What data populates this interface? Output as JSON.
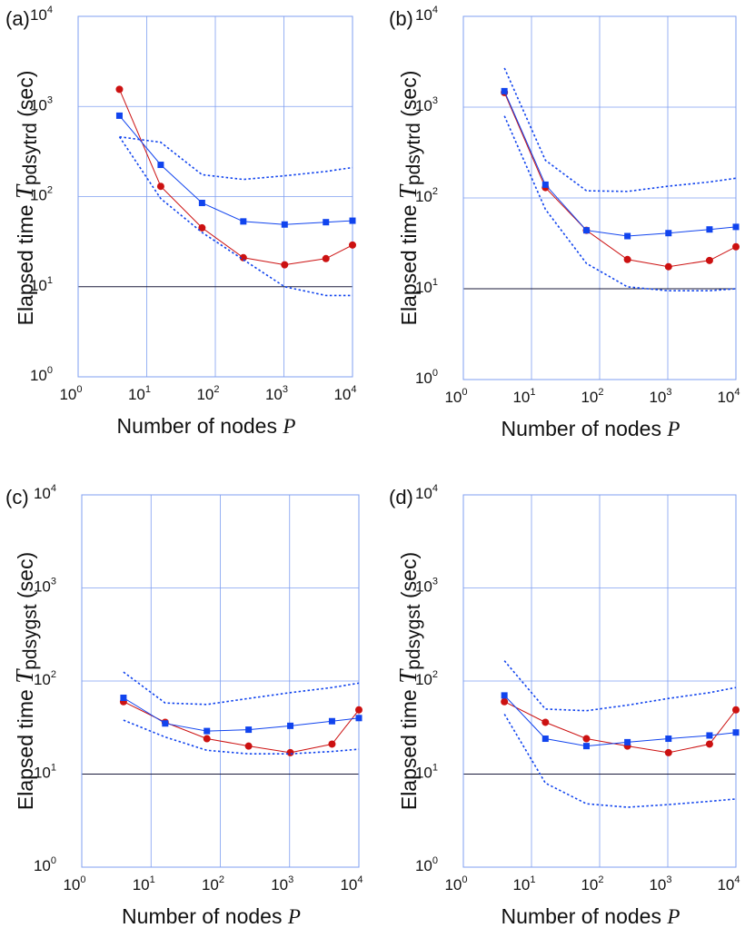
{
  "chart_data": [
    {
      "type": "line",
      "panel_label": "(a)",
      "xscale": "log",
      "yscale": "log",
      "xlim": [
        1,
        10000
      ],
      "ylim": [
        1,
        10000
      ],
      "grid": true,
      "x_ticks": [
        {
          "base": "10",
          "exp": "0"
        },
        {
          "base": "10",
          "exp": "1"
        },
        {
          "base": "10",
          "exp": "2"
        },
        {
          "base": "10",
          "exp": "3"
        },
        {
          "base": "10",
          "exp": "4"
        }
      ],
      "y_ticks": [
        {
          "base": "10",
          "exp": "0"
        },
        {
          "base": "10",
          "exp": "1"
        },
        {
          "base": "10",
          "exp": "2"
        },
        {
          "base": "10",
          "exp": "3"
        },
        {
          "base": "10",
          "exp": "4"
        }
      ],
      "xlabel": "Number of nodes",
      "xlabel_var": "P",
      "ylabel": "Elapsed time",
      "ylabel_var": "T",
      "ylabel_sub": "pdsytrd",
      "ylabel_unit": "(sec)",
      "series": [
        {
          "name": "red circles",
          "color": "#cc1111",
          "marker": "circle",
          "x": [
            4,
            16,
            64,
            256,
            1024,
            4096,
            10000
          ],
          "y": [
            1550,
            130,
            45,
            21,
            17.5,
            20.5,
            29
          ]
        },
        {
          "name": "blue squares",
          "color": "#1144ee",
          "marker": "square",
          "x": [
            4,
            16,
            64,
            256,
            1024,
            4096,
            10000
          ],
          "y": [
            790,
            225,
            85,
            53,
            49,
            52,
            54
          ]
        },
        {
          "name": "blue dotted upper",
          "color": "#1144ee",
          "style": "dotted",
          "x": [
            4,
            16,
            64,
            256,
            1024,
            4096,
            10000
          ],
          "y": [
            460,
            400,
            175,
            155,
            170,
            190,
            210
          ]
        },
        {
          "name": "blue dotted lower",
          "color": "#1144ee",
          "style": "dotted",
          "x": [
            4,
            16,
            64,
            256,
            1024,
            4096,
            10000
          ],
          "y": [
            460,
            95,
            40,
            20,
            10,
            8,
            8
          ]
        }
      ]
    },
    {
      "type": "line",
      "panel_label": "(b)",
      "xscale": "log",
      "yscale": "log",
      "xlim": [
        1,
        10000
      ],
      "ylim": [
        1,
        10000
      ],
      "grid": true,
      "x_ticks": [
        {
          "base": "10",
          "exp": "0"
        },
        {
          "base": "10",
          "exp": "1"
        },
        {
          "base": "10",
          "exp": "2"
        },
        {
          "base": "10",
          "exp": "3"
        },
        {
          "base": "10",
          "exp": "4"
        }
      ],
      "y_ticks": [
        {
          "base": "10",
          "exp": "0"
        },
        {
          "base": "10",
          "exp": "1"
        },
        {
          "base": "10",
          "exp": "2"
        },
        {
          "base": "10",
          "exp": "3"
        },
        {
          "base": "10",
          "exp": "4"
        }
      ],
      "xlabel": "Number of nodes",
      "xlabel_var": "P",
      "ylabel": "Elapsed time",
      "ylabel_var": "T",
      "ylabel_sub": "pdsytrd",
      "ylabel_unit": "(sec)",
      "series": [
        {
          "name": "red circles",
          "color": "#cc1111",
          "marker": "circle",
          "x": [
            4,
            16,
            64,
            256,
            1024,
            4096,
            10000
          ],
          "y": [
            1450,
            130,
            44,
            21,
            17.5,
            20.5,
            29
          ]
        },
        {
          "name": "blue squares",
          "color": "#1144ee",
          "marker": "square",
          "x": [
            4,
            16,
            64,
            256,
            1024,
            4096,
            10000
          ],
          "y": [
            1500,
            140,
            44,
            38,
            41,
            45,
            48
          ]
        },
        {
          "name": "blue dotted upper",
          "color": "#1144ee",
          "style": "dotted",
          "x": [
            4,
            16,
            64,
            256,
            1024,
            4096,
            10000
          ],
          "y": [
            2700,
            260,
            120,
            118,
            135,
            150,
            165
          ]
        },
        {
          "name": "blue dotted lower",
          "color": "#1144ee",
          "style": "dotted",
          "x": [
            4,
            16,
            64,
            256,
            1024,
            4096,
            10000
          ],
          "y": [
            800,
            75,
            19,
            10.5,
            9.5,
            9.5,
            10
          ]
        }
      ]
    },
    {
      "type": "line",
      "panel_label": "(c)",
      "xscale": "log",
      "yscale": "log",
      "xlim": [
        1,
        10000
      ],
      "ylim": [
        1,
        10000
      ],
      "grid": true,
      "x_ticks": [
        {
          "base": "10",
          "exp": "0"
        },
        {
          "base": "10",
          "exp": "1"
        },
        {
          "base": "10",
          "exp": "2"
        },
        {
          "base": "10",
          "exp": "3"
        },
        {
          "base": "10",
          "exp": "4"
        }
      ],
      "y_ticks": [
        {
          "base": "10",
          "exp": "0"
        },
        {
          "base": "10",
          "exp": "1"
        },
        {
          "base": "10",
          "exp": "2"
        },
        {
          "base": "10",
          "exp": "3"
        },
        {
          "base": "10",
          "exp": "4"
        }
      ],
      "xlabel": "Number of nodes",
      "xlabel_var": "P",
      "ylabel": "Elapsed time",
      "ylabel_var": "T",
      "ylabel_sub": "pdsygst",
      "ylabel_unit": "(sec)",
      "series": [
        {
          "name": "red circles",
          "color": "#cc1111",
          "marker": "circle",
          "x": [
            4,
            16,
            64,
            256,
            1024,
            4096,
            10000
          ],
          "y": [
            60,
            36,
            24,
            20,
            17,
            21,
            49
          ]
        },
        {
          "name": "blue squares",
          "color": "#1144ee",
          "marker": "square",
          "x": [
            4,
            16,
            64,
            256,
            1024,
            4096,
            10000
          ],
          "y": [
            66,
            35,
            29,
            30,
            33,
            37,
            40
          ]
        },
        {
          "name": "blue dotted upper",
          "color": "#1144ee",
          "style": "dotted",
          "x": [
            4,
            16,
            64,
            256,
            1024,
            4096,
            10000
          ],
          "y": [
            125,
            58,
            56,
            65,
            75,
            85,
            95
          ]
        },
        {
          "name": "blue dotted lower",
          "color": "#1144ee",
          "style": "dotted",
          "x": [
            4,
            16,
            64,
            256,
            1024,
            4096,
            10000
          ],
          "y": [
            38,
            25,
            18,
            16.5,
            16.5,
            17.5,
            18.5
          ]
        }
      ]
    },
    {
      "type": "line",
      "panel_label": "(d)",
      "xscale": "log",
      "yscale": "log",
      "xlim": [
        1,
        10000
      ],
      "ylim": [
        1,
        10000
      ],
      "grid": true,
      "x_ticks": [
        {
          "base": "10",
          "exp": "0"
        },
        {
          "base": "10",
          "exp": "1"
        },
        {
          "base": "10",
          "exp": "2"
        },
        {
          "base": "10",
          "exp": "3"
        },
        {
          "base": "10",
          "exp": "4"
        }
      ],
      "y_ticks": [
        {
          "base": "10",
          "exp": "0"
        },
        {
          "base": "10",
          "exp": "1"
        },
        {
          "base": "10",
          "exp": "2"
        },
        {
          "base": "10",
          "exp": "3"
        },
        {
          "base": "10",
          "exp": "4"
        }
      ],
      "xlabel": "Number of nodes",
      "xlabel_var": "P",
      "ylabel": "Elapsed time",
      "ylabel_var": "T",
      "ylabel_sub": "pdsygst",
      "ylabel_unit": "(sec)",
      "series": [
        {
          "name": "red circles",
          "color": "#cc1111",
          "marker": "circle",
          "x": [
            4,
            16,
            64,
            256,
            1024,
            4096,
            10000
          ],
          "y": [
            60,
            36,
            24,
            20,
            17,
            21,
            49
          ]
        },
        {
          "name": "blue squares",
          "color": "#1144ee",
          "marker": "square",
          "x": [
            4,
            16,
            64,
            256,
            1024,
            4096,
            10000
          ],
          "y": [
            70,
            24,
            20,
            22,
            24,
            26,
            28
          ]
        },
        {
          "name": "blue dotted upper",
          "color": "#1144ee",
          "style": "dotted",
          "x": [
            4,
            16,
            64,
            256,
            1024,
            4096,
            10000
          ],
          "y": [
            165,
            50,
            48,
            55,
            65,
            75,
            85
          ]
        },
        {
          "name": "blue dotted lower",
          "color": "#1144ee",
          "style": "dotted",
          "x": [
            4,
            16,
            64,
            256,
            1024,
            4096,
            10000
          ],
          "y": [
            44,
            8,
            4.8,
            4.4,
            4.7,
            5.1,
            5.4
          ]
        }
      ]
    }
  ]
}
